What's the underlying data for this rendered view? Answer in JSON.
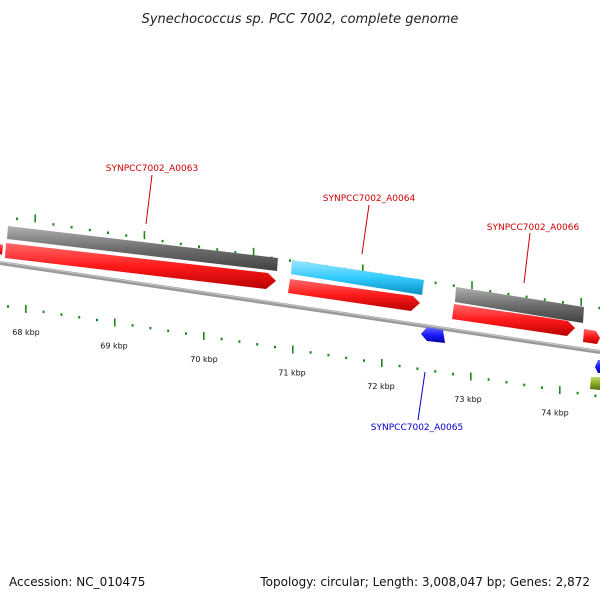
{
  "title": "Synechococcus sp. PCC 7002, complete genome",
  "footer": {
    "accession": "Accession: NC_010475",
    "summary": "Topology: circular; Length: 3,008,047 bp; Genes: 2,872"
  },
  "ruler": {
    "labels": [
      "68 kbp",
      "69 kbp",
      "70 kbp",
      "71 kbp",
      "72 kbp",
      "73 kbp",
      "74 kbp"
    ]
  },
  "genes": [
    {
      "id": "SYNPCC7002_A0063",
      "label": "SYNPCC7002_A0063",
      "color": "#cc0000"
    },
    {
      "id": "SYNPCC7002_A0064",
      "label": "SYNPCC7002_A0064",
      "color": "#cc0000"
    },
    {
      "id": "SYNPCC7002_A0065",
      "label": "SYNPCC7002_A0065",
      "color": "#0000cc"
    },
    {
      "id": "SYNPCC7002_A0066",
      "label": "SYNPCC7002_A0066",
      "color": "#cc0000"
    }
  ],
  "colors": {
    "cds_red": "#ff1a1a",
    "cds_blue": "#1a1aff",
    "gene_gray": "#6e6e6e",
    "rrna_cyan": "#33ccff",
    "backbone": "#8a8a8a",
    "tick_green": "#1a8a1a",
    "olive": "#88aa22"
  }
}
